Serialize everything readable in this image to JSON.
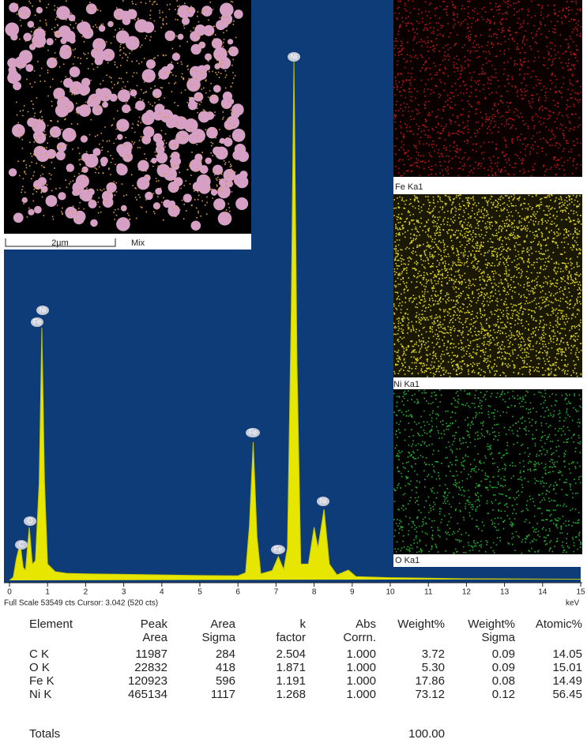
{
  "chart_data": {
    "type": "area",
    "x": [
      0,
      0.1,
      0.18,
      0.28,
      0.36,
      0.42,
      0.52,
      0.6,
      0.68,
      0.78,
      0.85,
      0.92,
      1.0,
      1.2,
      1.5,
      2.0,
      3.0,
      4.0,
      5.0,
      6.0,
      6.2,
      6.3,
      6.4,
      6.5,
      6.6,
      6.9,
      7.06,
      7.2,
      7.3,
      7.4,
      7.47,
      7.55,
      7.65,
      7.85,
      8.0,
      8.1,
      8.26,
      8.4,
      8.6,
      8.9,
      9.1,
      10.0,
      12.0,
      15.0
    ],
    "values": [
      0,
      300,
      2000,
      3400,
      1200,
      900,
      4900,
      1500,
      1800,
      9000,
      23300,
      9000,
      1500,
      800,
      650,
      600,
      560,
      500,
      450,
      420,
      700,
      5000,
      12750,
      4000,
      600,
      900,
      2200,
      1000,
      3000,
      25000,
      47900,
      20000,
      1500,
      1500,
      4900,
      3000,
      6560,
      1500,
      500,
      950,
      350,
      250,
      150,
      100
    ],
    "color": "#e6e600",
    "xlim": [
      0,
      15
    ],
    "xticks": [
      0,
      1,
      2,
      3,
      4,
      5,
      6,
      7,
      8,
      9,
      10,
      11,
      12,
      13,
      14,
      15
    ],
    "ylim": [
      0,
      53549
    ],
    "x_unit": "keV",
    "status": "Full Scale 53549 cts Cursor: 3.042  (520 cts)",
    "peak_labels": [
      "C",
      "O",
      "Fe",
      "Ni",
      "Fe",
      "Fe",
      "Ni",
      "Ni"
    ]
  },
  "maps": {
    "scale_bar": "2µm",
    "mix": "Mix",
    "fe": "Fe Ka1",
    "ni": "Ni Ka1",
    "o": "O Ka1"
  },
  "table": {
    "header": [
      [
        "Element"
      ],
      [
        "Peak",
        "Area"
      ],
      [
        "Area",
        "Sigma"
      ],
      [
        "k",
        "factor"
      ],
      [
        "Abs",
        "Corrn."
      ],
      [
        "Weight%"
      ],
      [
        "Weight%",
        "Sigma"
      ],
      [
        "Atomic%"
      ]
    ],
    "rows": [
      [
        "C K",
        "11987",
        "284",
        "2.504",
        "1.000",
        "3.72",
        "0.09",
        "14.05"
      ],
      [
        "O K",
        "22832",
        "418",
        "1.871",
        "1.000",
        "5.30",
        "0.09",
        "15.01"
      ],
      [
        "Fe K",
        "120923",
        "596",
        "1.191",
        "1.000",
        "17.86",
        "0.08",
        "14.49"
      ],
      [
        "Ni K",
        "465134",
        "1117",
        "1.268",
        "1.000",
        "73.12",
        "0.12",
        "56.45"
      ]
    ],
    "totals": [
      "Totals",
      "100.00"
    ]
  }
}
